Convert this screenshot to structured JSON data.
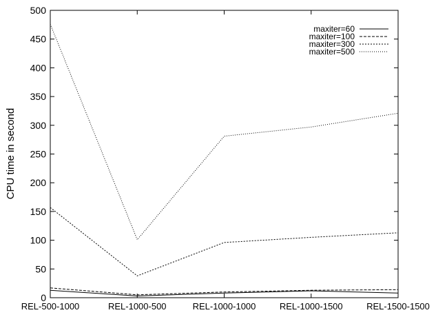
{
  "chart_data": {
    "type": "line",
    "title": "",
    "xlabel": "",
    "ylabel": "CPU time in second",
    "categories": [
      "REL-500-1000",
      "REL-1000-500",
      "REL-1000-1000",
      "REL-1000-1500",
      "REL-1500-1500"
    ],
    "ylim": [
      0,
      500
    ],
    "yticks": [
      0,
      50,
      100,
      150,
      200,
      250,
      300,
      350,
      400,
      450,
      500
    ],
    "grid": false,
    "legend_position": "top-right",
    "series": [
      {
        "name": "maxiter=60",
        "dash": "solid",
        "values": [
          13,
          3,
          8,
          12,
          8
        ]
      },
      {
        "name": "maxiter=100",
        "dash": "dashed",
        "values": [
          17,
          5,
          10,
          13,
          14
        ]
      },
      {
        "name": "maxiter=300",
        "dash": "dotted",
        "values": [
          157,
          38,
          96,
          105,
          113
        ]
      },
      {
        "name": "maxiter=500",
        "dash": "sparse",
        "values": [
          476,
          101,
          281,
          297,
          321
        ]
      }
    ]
  }
}
